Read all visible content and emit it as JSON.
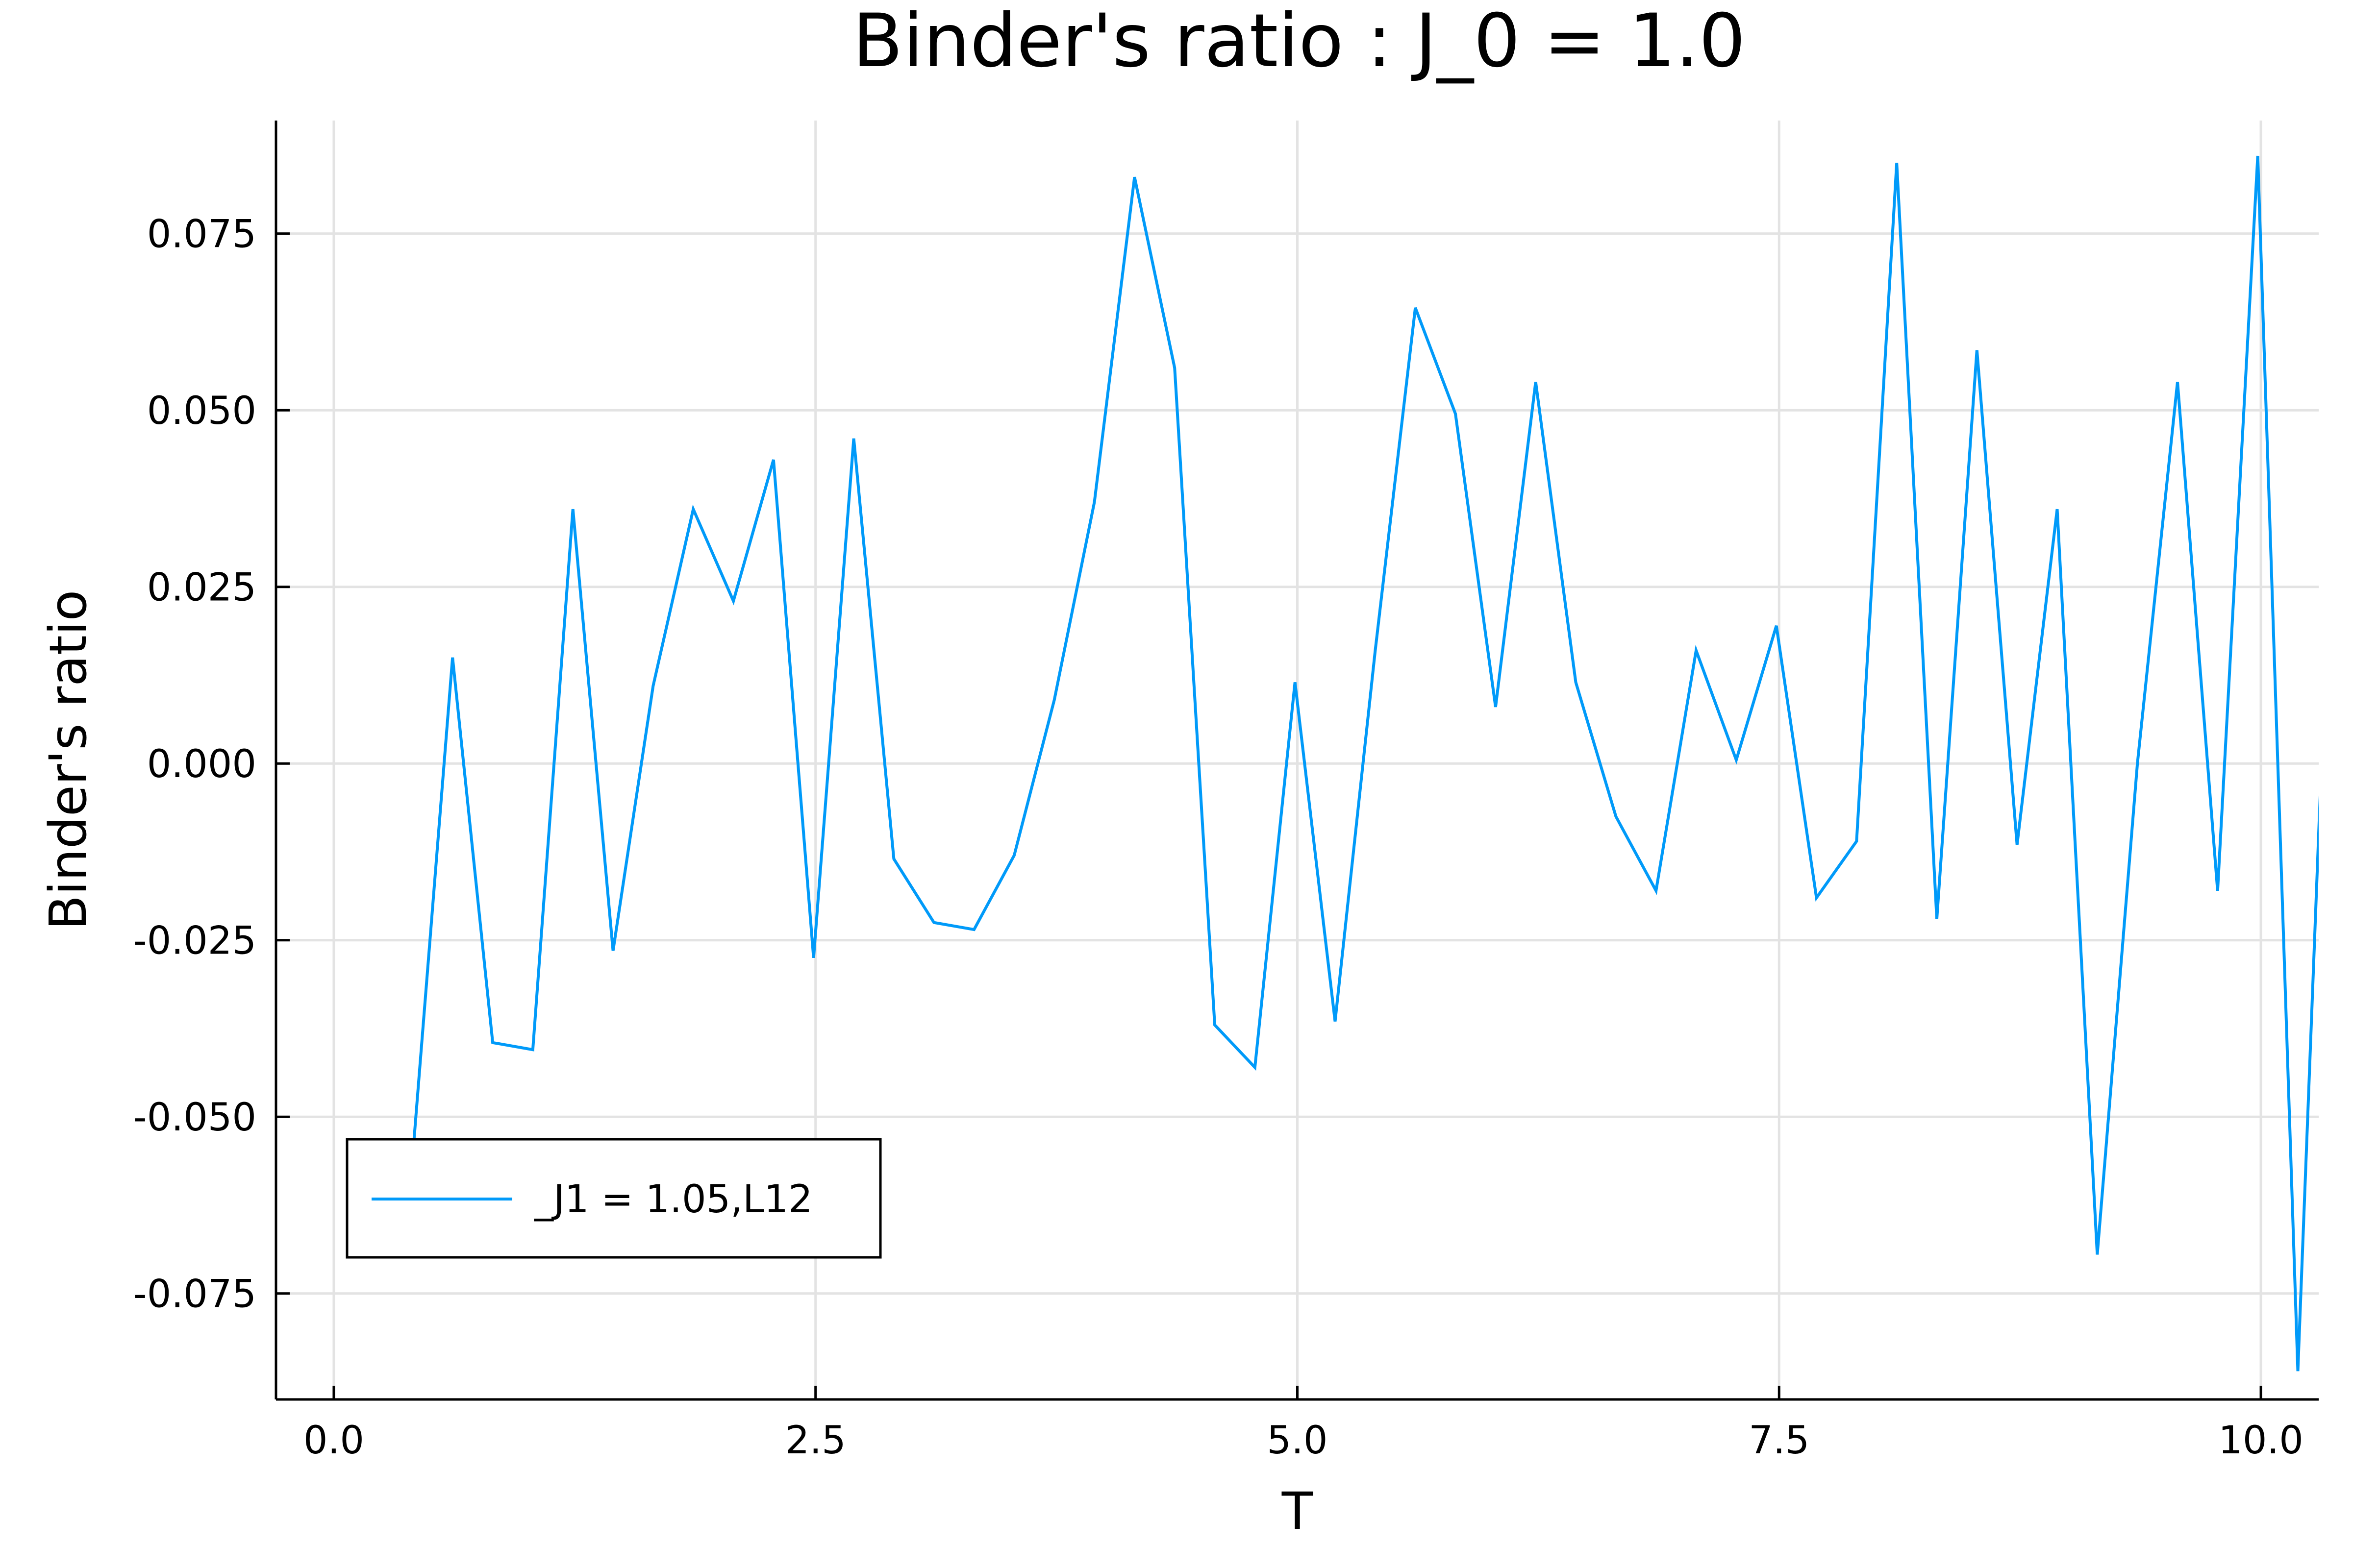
{
  "chart_data": {
    "type": "line",
    "title": "Binder's ratio : J_0 = 1.0",
    "xlabel": "T",
    "ylabel": "Binder's ratio",
    "xlim": [
      -0.3,
      10.3
    ],
    "ylim": [
      -0.09,
      0.091
    ],
    "x_ticks": [
      0.0,
      2.5,
      5.0,
      7.5,
      10.0
    ],
    "x_tick_labels": [
      "0.0",
      "2.5",
      "5.0",
      "7.5",
      "10.0"
    ],
    "y_ticks": [
      -0.075,
      -0.05,
      -0.025,
      0.0,
      0.025,
      0.05,
      0.075
    ],
    "y_tick_labels": [
      "-0.075",
      "-0.050",
      "-0.025",
      "0.000",
      "0.025",
      "0.050",
      "0.075"
    ],
    "grid": true,
    "legend_position": "bottom-left",
    "colors": {
      "series": "#009af9"
    },
    "series": [
      {
        "name": "_J1 = 1.05,L12",
        "x": [
          0.2,
          0.4082,
          0.6163,
          0.8245,
          1.0327,
          1.2408,
          1.449,
          1.6571,
          1.8653,
          2.0735,
          2.2816,
          2.4898,
          2.698,
          2.9061,
          3.1143,
          3.3224,
          3.5306,
          3.7388,
          3.9469,
          4.1551,
          4.3633,
          4.5714,
          4.7796,
          4.9878,
          5.1959,
          5.4041,
          5.6122,
          5.8204,
          6.0286,
          6.2367,
          6.4449,
          6.6531,
          6.8612,
          7.0694,
          7.2776,
          7.4857,
          7.6939,
          7.902,
          8.1102,
          8.3184,
          8.5265,
          8.7347,
          8.9429,
          9.151,
          9.3592,
          9.5673,
          9.7755,
          9.9837,
          10.1918,
          10.4
        ],
        "y": [
          -0.064,
          -0.056,
          0.015,
          -0.0395,
          -0.0405,
          0.036,
          -0.0265,
          0.011,
          0.036,
          0.023,
          0.043,
          -0.0275,
          0.046,
          -0.0135,
          -0.0225,
          -0.0235,
          -0.013,
          0.009,
          0.037,
          0.083,
          0.056,
          -0.037,
          -0.043,
          0.0115,
          -0.0365,
          0.016,
          0.0645,
          0.0495,
          0.008,
          0.054,
          0.0115,
          -0.0075,
          -0.018,
          0.016,
          0.0005,
          0.0195,
          -0.019,
          -0.011,
          0.085,
          -0.022,
          0.0585,
          -0.0115,
          0.036,
          -0.0695,
          0.0,
          0.054,
          -0.018,
          0.086,
          -0.086,
          0.0605
        ]
      }
    ]
  }
}
